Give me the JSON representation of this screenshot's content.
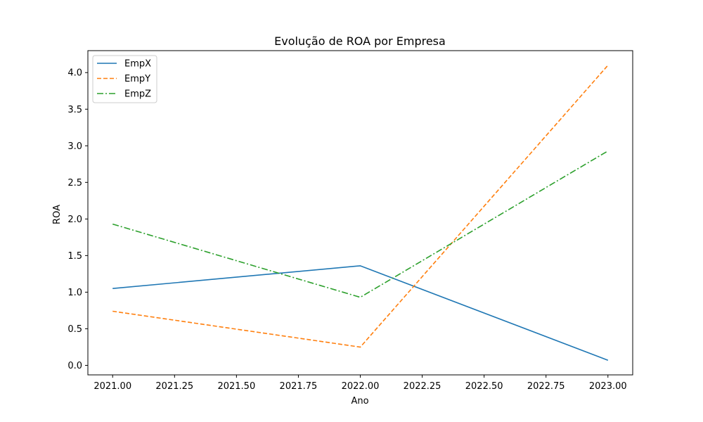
{
  "chart_data": {
    "type": "line",
    "title": "Evolução de ROA por Empresa",
    "xlabel": "Ano",
    "ylabel": "ROA",
    "x": [
      2021,
      2022,
      2023
    ],
    "xlim": [
      2020.9,
      2023.1
    ],
    "ylim": [
      -0.13,
      4.3
    ],
    "xticks": [
      2021.0,
      2021.25,
      2021.5,
      2021.75,
      2022.0,
      2022.25,
      2022.5,
      2022.75,
      2023.0
    ],
    "xtick_labels": [
      "2021.00",
      "2021.25",
      "2021.50",
      "2021.75",
      "2022.00",
      "2022.25",
      "2022.50",
      "2022.75",
      "2023.00"
    ],
    "yticks": [
      0.0,
      0.5,
      1.0,
      1.5,
      2.0,
      2.5,
      3.0,
      3.5,
      4.0
    ],
    "ytick_labels": [
      "0.0",
      "0.5",
      "1.0",
      "1.5",
      "2.0",
      "2.5",
      "3.0",
      "3.5",
      "4.0"
    ],
    "grid": false,
    "legend_position": "top-left",
    "series": [
      {
        "name": "EmpX",
        "values": [
          1.05,
          1.36,
          0.07
        ],
        "color": "#1f77b4",
        "style": "solid"
      },
      {
        "name": "EmpY",
        "values": [
          0.74,
          0.25,
          4.1
        ],
        "color": "#ff7f0e",
        "style": "dashed"
      },
      {
        "name": "EmpZ",
        "values": [
          1.93,
          0.93,
          2.93
        ],
        "color": "#2ca02c",
        "style": "dashdot"
      }
    ]
  }
}
